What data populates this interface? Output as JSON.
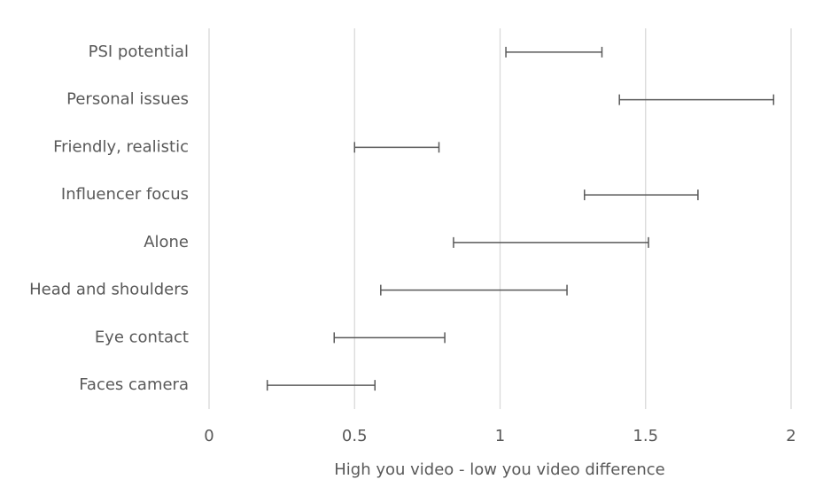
{
  "chart_data": {
    "type": "range",
    "x_label": "High you video - low you video difference",
    "categories": [
      "PSI potential",
      "Personal issues",
      "Friendly, realistic",
      "Influencer focus",
      "Alone",
      "Head and shoulders",
      "Eye contact",
      "Faces camera"
    ],
    "low": [
      1.02,
      1.41,
      0.5,
      1.29,
      0.84,
      0.59,
      0.43,
      0.2
    ],
    "high": [
      1.35,
      1.94,
      0.79,
      1.68,
      1.51,
      1.23,
      0.81,
      0.57
    ],
    "color": "#595959",
    "xlim": [
      0,
      2
    ],
    "xticks": [
      0,
      0.5,
      1,
      1.5,
      2
    ],
    "grid": true
  }
}
